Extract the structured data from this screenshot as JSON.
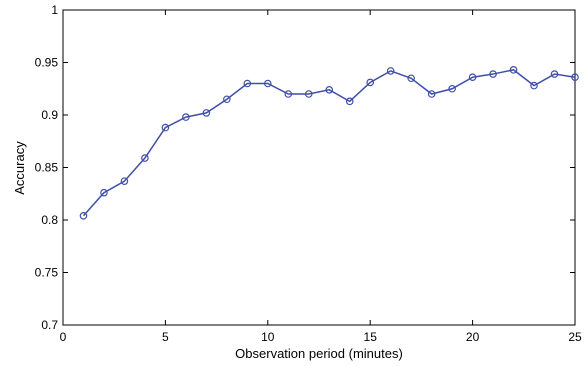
{
  "chart_data": {
    "type": "line",
    "title": "",
    "xlabel": "Observation period (minutes)",
    "ylabel": "Accuracy",
    "xlim": [
      0,
      25
    ],
    "ylim": [
      0.7,
      1.0
    ],
    "xticks": [
      0,
      5,
      10,
      15,
      20,
      25
    ],
    "yticks": [
      0.7,
      0.75,
      0.8,
      0.85,
      0.9,
      0.95,
      1.0
    ],
    "xtick_labels": [
      "0",
      "5",
      "10",
      "15",
      "20",
      "25"
    ],
    "ytick_labels": [
      "0.7",
      "0.75",
      "0.8",
      "0.85",
      "0.9",
      "0.95",
      "1"
    ],
    "grid": false,
    "series": [
      {
        "color": "#3f4fa8",
        "marker": "circle",
        "x": [
          1,
          2,
          3,
          4,
          5,
          6,
          7,
          8,
          9,
          10,
          11,
          12,
          13,
          14,
          15,
          16,
          17,
          18,
          19,
          20,
          21,
          22,
          23,
          24,
          25
        ],
        "y": [
          0.804,
          0.826,
          0.837,
          0.859,
          0.888,
          0.898,
          0.902,
          0.915,
          0.93,
          0.93,
          0.92,
          0.92,
          0.924,
          0.913,
          0.931,
          0.942,
          0.935,
          0.92,
          0.925,
          0.936,
          0.939,
          0.943,
          0.928,
          0.939,
          0.936
        ]
      }
    ]
  }
}
